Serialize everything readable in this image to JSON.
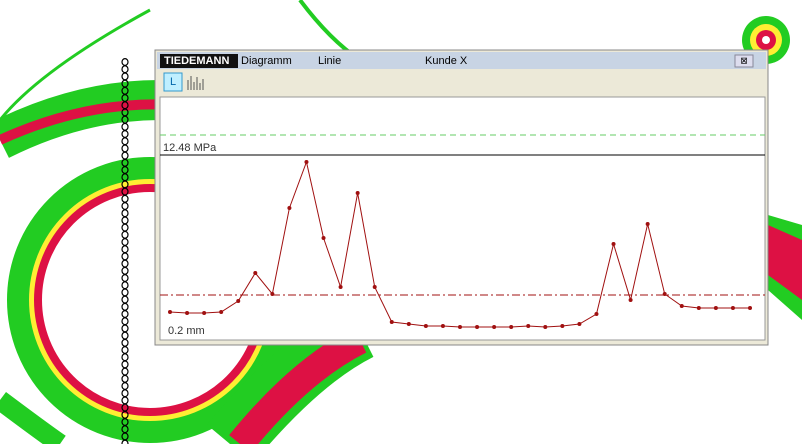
{
  "window": {
    "logo": "TIEDEMANN",
    "menu": [
      "Diagramm",
      "Linie",
      "Kunde X"
    ],
    "close": "⊠"
  },
  "toolbar": {
    "button": "L"
  },
  "chart_data": {
    "type": "line",
    "color": "#a01010",
    "values": [
      28,
      27,
      27,
      28,
      39,
      67,
      46,
      132,
      178,
      102,
      53,
      147,
      53,
      18,
      16,
      14,
      14,
      13,
      13,
      13,
      13,
      14,
      13,
      14,
      16,
      26,
      96,
      40,
      116,
      46,
      34,
      32,
      32,
      32,
      32
    ],
    "ylim": [
      0,
      243
    ],
    "upper_line": {
      "value": 205,
      "label": "12.48 MPa",
      "color": "#66cc66"
    },
    "lower_line": {
      "value": 45,
      "label": "0.2 mm",
      "color": "#a01010"
    }
  }
}
